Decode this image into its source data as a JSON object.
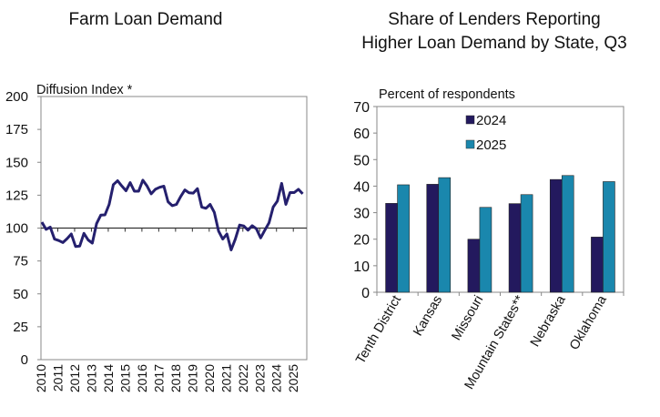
{
  "chart_data": [
    {
      "type": "line",
      "title": "Farm Loan Demand",
      "ylabel": "Diffusion Index *",
      "ylim": [
        0,
        200
      ],
      "yticks": [
        0,
        25,
        50,
        75,
        100,
        125,
        150,
        175,
        200
      ],
      "xlim": [
        "2010Q1",
        "2025Q4"
      ],
      "xticks": [
        "2010",
        "2011",
        "2012",
        "2013",
        "2014",
        "2015",
        "2016",
        "2017",
        "2018",
        "2019",
        "2020",
        "2021",
        "2022",
        "2023",
        "2024",
        "2025"
      ],
      "x_axis_crosses_at": 100,
      "grid": false,
      "color": "#25206e",
      "start": "2010Q1",
      "frequency": "quarterly",
      "values": [
        104.5,
        99,
        100.7,
        91.6,
        90.5,
        89,
        92,
        95.5,
        86,
        86.4,
        96,
        91,
        88.6,
        103.4,
        109.8,
        110,
        118,
        133,
        136,
        132,
        128.4,
        134.5,
        128,
        128,
        136.4,
        132,
        126,
        129.5,
        131,
        131.8,
        120,
        117,
        118,
        124,
        129,
        126.8,
        126.6,
        130,
        116,
        115,
        118,
        112,
        97.7,
        91.6,
        95.5,
        83.4,
        91.6,
        102.3,
        101.6,
        98.4,
        101.8,
        99.5,
        92.5,
        98.4,
        104,
        116,
        120.5,
        134,
        118,
        127,
        127,
        129.5,
        126
      ]
    },
    {
      "type": "bar",
      "title": [
        "Share of Lenders Reporting",
        "Higher Loan Demand by State, Q3"
      ],
      "ylabel": "Percent of respondents",
      "ylim": [
        0,
        70
      ],
      "yticks": [
        0,
        10,
        20,
        30,
        40,
        50,
        60,
        70
      ],
      "grid": false,
      "legend": "top-center",
      "categories": [
        "Tenth District",
        "Kansas",
        "Missouri",
        "Mountain States**",
        "Nebraska",
        "Oklahoma"
      ],
      "series": [
        {
          "name": "2024",
          "color": "#23195e",
          "values": [
            33.5,
            40.7,
            20,
            33.4,
            42.5,
            20.8
          ]
        },
        {
          "name": "2025",
          "color": "#1a87ad",
          "values": [
            40.5,
            43.2,
            32,
            36.8,
            44,
            41.7
          ]
        }
      ]
    }
  ]
}
